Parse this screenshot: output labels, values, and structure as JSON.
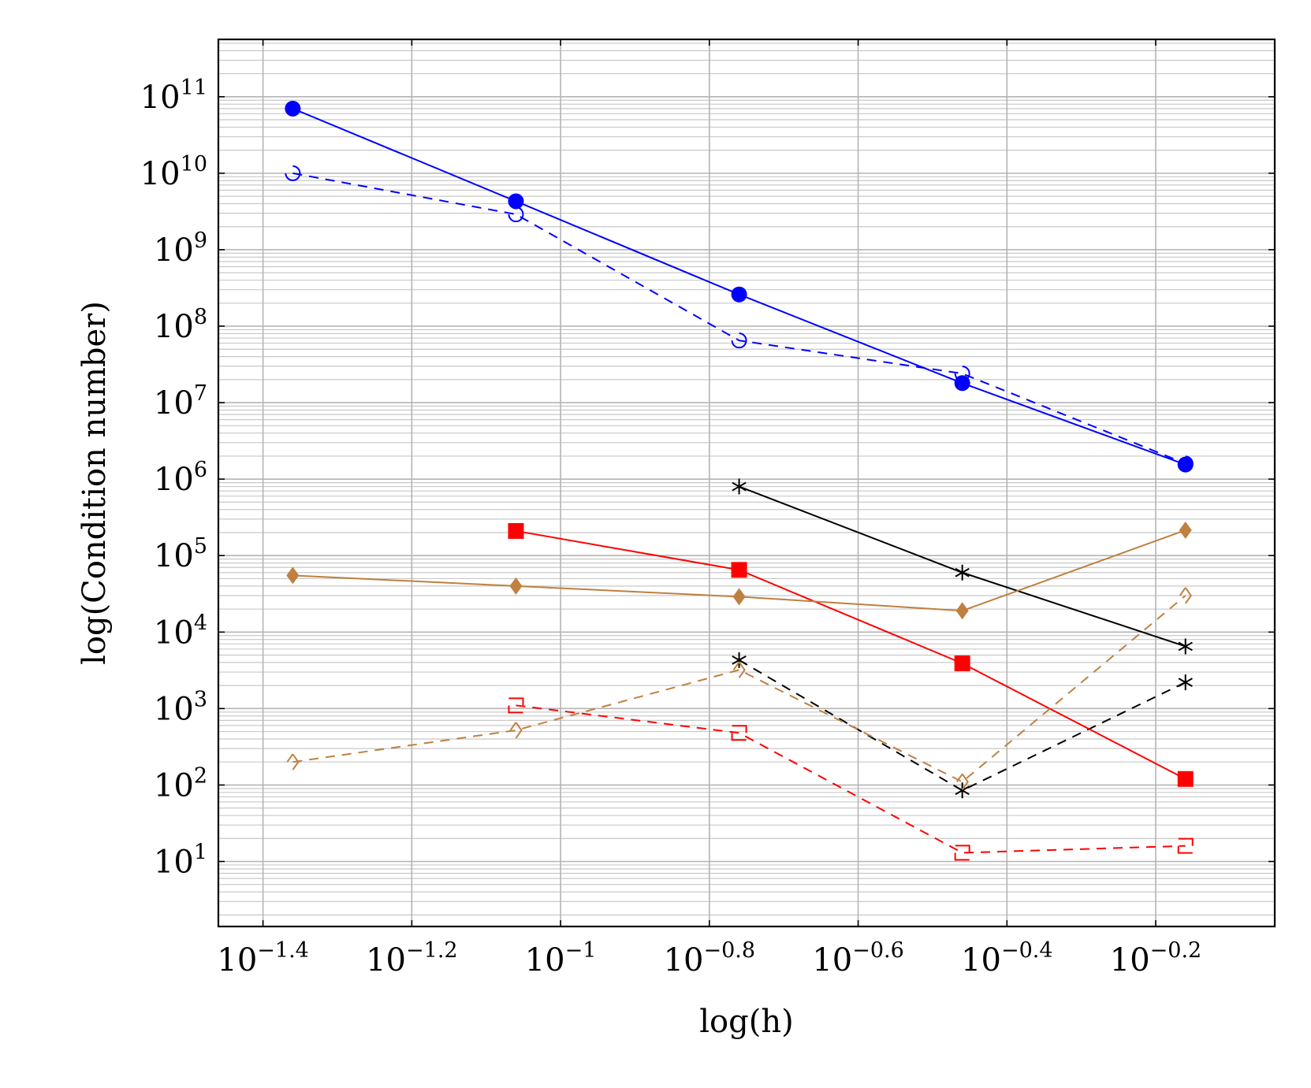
{
  "chart_data": {
    "type": "line",
    "title": "",
    "xlabel": "log(h)",
    "ylabel": "log(Condition number)",
    "x_scale": "log",
    "y_scale": "log",
    "xlim_log10": [
      -1.46,
      -0.04
    ],
    "ylim_log10": [
      0.15,
      11.75
    ],
    "x_tick_log10": [
      -1.4,
      -1.2,
      -1.0,
      -0.8,
      -0.6,
      -0.4,
      -0.2
    ],
    "x_tick_labels": [
      {
        "base": "10",
        "exp": "−1.4"
      },
      {
        "base": "10",
        "exp": "−1.2"
      },
      {
        "base": "10",
        "exp": "−1"
      },
      {
        "base": "10",
        "exp": "−0.8"
      },
      {
        "base": "10",
        "exp": "−0.6"
      },
      {
        "base": "10",
        "exp": "−0.4"
      },
      {
        "base": "10",
        "exp": "−0.2"
      }
    ],
    "y_tick_log10": [
      1,
      2,
      3,
      4,
      5,
      6,
      7,
      8,
      9,
      10,
      11
    ],
    "y_tick_labels": [
      {
        "base": "10",
        "exp": "1"
      },
      {
        "base": "10",
        "exp": "2"
      },
      {
        "base": "10",
        "exp": "3"
      },
      {
        "base": "10",
        "exp": "4"
      },
      {
        "base": "10",
        "exp": "5"
      },
      {
        "base": "10",
        "exp": "6"
      },
      {
        "base": "10",
        "exp": "7"
      },
      {
        "base": "10",
        "exp": "8"
      },
      {
        "base": "10",
        "exp": "9"
      },
      {
        "base": "10",
        "exp": "10"
      },
      {
        "base": "10",
        "exp": "11"
      }
    ],
    "grid": true,
    "minor_grid_y": true,
    "legend": "none",
    "series": [
      {
        "color": "#0000ff",
        "dash": false,
        "marker": "circle",
        "x_log10": [
          -1.36,
          -1.06,
          -0.76,
          -0.46,
          -0.16
        ],
        "y": [
          70000000000,
          4300000000,
          260000000,
          18000000,
          1550000
        ]
      },
      {
        "color": "#0000ff",
        "dash": true,
        "marker": "half-circle",
        "x_log10": [
          -1.36,
          -1.06,
          -0.76,
          -0.46,
          -0.16
        ],
        "y": [
          10000000000,
          2900000000,
          65000000,
          24000000,
          1600000
        ]
      },
      {
        "color": "#000000",
        "dash": false,
        "marker": "star",
        "x_log10": [
          -0.76,
          -0.46,
          -0.16
        ],
        "y": [
          800000,
          60000,
          6500
        ]
      },
      {
        "color": "#000000",
        "dash": true,
        "marker": "star",
        "x_log10": [
          -0.76,
          -0.46,
          -0.16
        ],
        "y": [
          4300,
          85,
          2200
        ]
      },
      {
        "color": "#ff0000",
        "dash": false,
        "marker": "square",
        "x_log10": [
          -1.06,
          -0.76,
          -0.46,
          -0.16
        ],
        "y": [
          210000,
          65000,
          3900,
          120
        ]
      },
      {
        "color": "#ff0000",
        "dash": true,
        "marker": "half-square",
        "x_log10": [
          -1.06,
          -0.76,
          -0.46,
          -0.16
        ],
        "y": [
          1100,
          480,
          13,
          16
        ]
      },
      {
        "color": "#bf8040",
        "dash": false,
        "marker": "diamond",
        "x_log10": [
          -1.36,
          -1.06,
          -0.76,
          -0.46,
          -0.16
        ],
        "y": [
          55000,
          40000,
          29000,
          19000,
          215000
        ]
      },
      {
        "color": "#bf8040",
        "dash": true,
        "marker": "half-diamond",
        "x_log10": [
          -1.36,
          -1.06,
          -0.76,
          -0.46,
          -0.16
        ],
        "y": [
          200,
          520,
          3200,
          110,
          30000
        ]
      }
    ]
  }
}
